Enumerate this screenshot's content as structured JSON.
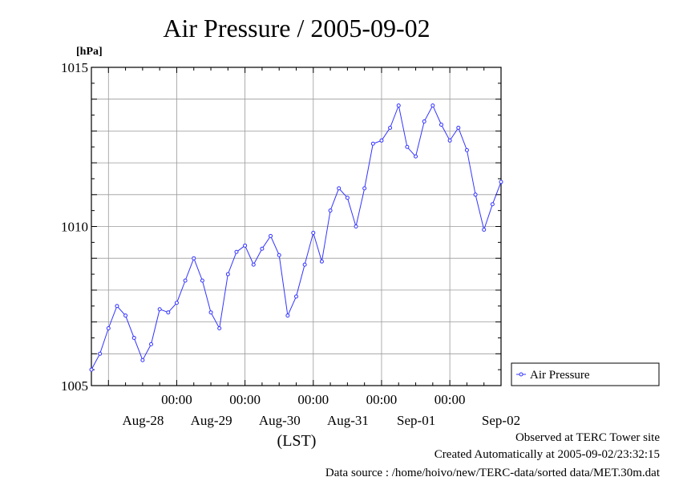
{
  "chart_data": {
    "type": "line",
    "title": "Air Pressure / 2005-09-02",
    "ylabel_unit": "[hPa]",
    "xlabel": "(LST)",
    "ylim": [
      1005,
      1015
    ],
    "y_ticks": [
      "1005",
      "1010",
      "1015"
    ],
    "y_grid_step": 1,
    "x_range_hours": [
      -6,
      138
    ],
    "x_time_tick_label": "00:00",
    "x_ticks": [
      {
        "hour": 24,
        "date_label": "Aug-28"
      },
      {
        "hour": 48,
        "date_label": "Aug-29"
      },
      {
        "hour": 72,
        "date_label": "Aug-30"
      },
      {
        "hour": 96,
        "date_label": "Aug-31"
      },
      {
        "hour": 120,
        "date_label": "Sep-01"
      }
    ],
    "last_date_label": {
      "hour": 138,
      "date_label": "Sep-02"
    },
    "grid": true,
    "legend_placement": "right",
    "series": [
      {
        "name": "Air Pressure",
        "color": "#3333ff",
        "marker": "open-circle",
        "x_hours": [
          -6,
          -3,
          0,
          3,
          6,
          9,
          12,
          15,
          18,
          21,
          24,
          27,
          30,
          33,
          36,
          39,
          42,
          45,
          48,
          51,
          54,
          57,
          60,
          63,
          66,
          69,
          72,
          75,
          78,
          81,
          84,
          87,
          90,
          93,
          96,
          99,
          102,
          105,
          108,
          111,
          114,
          117,
          120,
          123,
          126,
          129,
          132,
          135,
          138
        ],
        "values": [
          1005.5,
          1006.0,
          1006.8,
          1007.5,
          1007.2,
          1006.5,
          1005.8,
          1006.3,
          1007.4,
          1007.3,
          1007.6,
          1008.3,
          1009.0,
          1008.3,
          1007.3,
          1006.8,
          1008.5,
          1009.2,
          1009.4,
          1008.8,
          1009.3,
          1009.7,
          1009.1,
          1007.2,
          1007.8,
          1008.8,
          1009.8,
          1008.9,
          1010.5,
          1011.2,
          1010.9,
          1010.0,
          1011.2,
          1012.6,
          1012.7,
          1013.1,
          1013.8,
          1012.5,
          1012.2,
          1013.3,
          1013.8,
          1013.2,
          1012.7,
          1013.1,
          1012.4,
          1011.0,
          1009.9,
          1010.7,
          1011.4
        ]
      }
    ]
  },
  "footer": {
    "observed": "Observed at TERC Tower site",
    "created": "Created Automatically at 2005-09-02/23:32:15",
    "source": "Data source : /home/hoivo/new/TERC-data/sorted data/MET.30m.dat"
  }
}
